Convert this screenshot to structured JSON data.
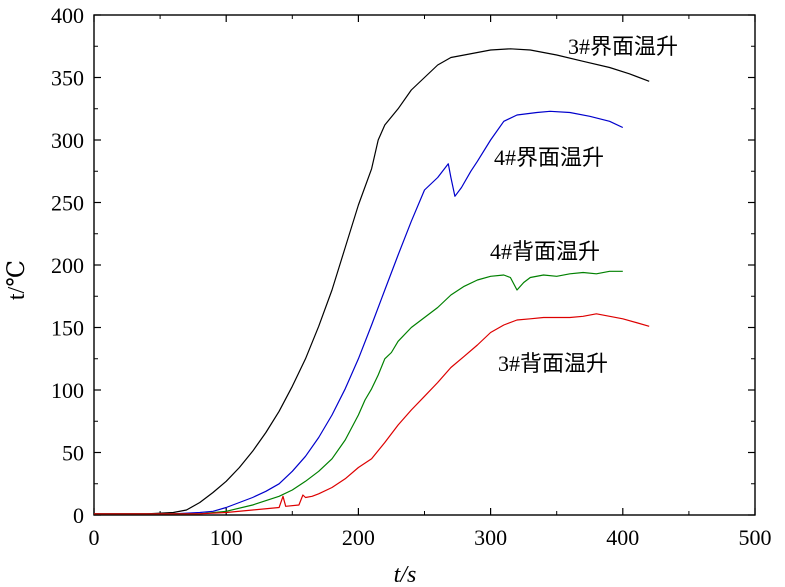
{
  "chart_data": {
    "type": "line",
    "xlabel": "t/s",
    "ylabel": "t/℃",
    "xlim": [
      0,
      500
    ],
    "ylim": [
      0,
      400
    ],
    "xticks": [
      0,
      100,
      200,
      300,
      400,
      500
    ],
    "yticks": [
      0,
      50,
      100,
      150,
      200,
      250,
      300,
      350,
      400
    ],
    "grid": false,
    "series": [
      {
        "name": "3#界面温升",
        "color": "#000000",
        "points": [
          [
            0,
            1
          ],
          [
            40,
            1
          ],
          [
            60,
            2
          ],
          [
            70,
            4
          ],
          [
            80,
            10
          ],
          [
            90,
            18
          ],
          [
            100,
            27
          ],
          [
            110,
            38
          ],
          [
            120,
            51
          ],
          [
            130,
            66
          ],
          [
            140,
            83
          ],
          [
            150,
            103
          ],
          [
            160,
            125
          ],
          [
            170,
            151
          ],
          [
            180,
            180
          ],
          [
            190,
            214
          ],
          [
            200,
            248
          ],
          [
            210,
            277
          ],
          [
            215,
            300
          ],
          [
            220,
            312
          ],
          [
            230,
            325
          ],
          [
            240,
            340
          ],
          [
            250,
            350
          ],
          [
            260,
            360
          ],
          [
            270,
            366
          ],
          [
            280,
            368
          ],
          [
            290,
            370
          ],
          [
            300,
            372
          ],
          [
            315,
            373
          ],
          [
            330,
            372
          ],
          [
            350,
            368
          ],
          [
            370,
            363
          ],
          [
            390,
            358
          ],
          [
            405,
            353
          ],
          [
            420,
            347
          ]
        ]
      },
      {
        "name": "4#界面温升",
        "color": "#0000cc",
        "points": [
          [
            0,
            1
          ],
          [
            60,
            1
          ],
          [
            80,
            2
          ],
          [
            90,
            3
          ],
          [
            100,
            6
          ],
          [
            110,
            10
          ],
          [
            120,
            14
          ],
          [
            130,
            19
          ],
          [
            140,
            25
          ],
          [
            150,
            35
          ],
          [
            160,
            47
          ],
          [
            170,
            62
          ],
          [
            180,
            80
          ],
          [
            190,
            101
          ],
          [
            200,
            125
          ],
          [
            210,
            152
          ],
          [
            220,
            180
          ],
          [
            230,
            208
          ],
          [
            240,
            235
          ],
          [
            250,
            260
          ],
          [
            260,
            270
          ],
          [
            268,
            281
          ],
          [
            270,
            270
          ],
          [
            273,
            255
          ],
          [
            278,
            262
          ],
          [
            285,
            275
          ],
          [
            290,
            283
          ],
          [
            300,
            300
          ],
          [
            310,
            315
          ],
          [
            320,
            320
          ],
          [
            335,
            322
          ],
          [
            345,
            323
          ],
          [
            360,
            322
          ],
          [
            375,
            319
          ],
          [
            390,
            315
          ],
          [
            400,
            310
          ]
        ]
      },
      {
        "name": "4#背面温升",
        "color": "#008000",
        "points": [
          [
            0,
            1
          ],
          [
            80,
            1
          ],
          [
            100,
            3
          ],
          [
            120,
            8
          ],
          [
            140,
            15
          ],
          [
            150,
            20
          ],
          [
            160,
            27
          ],
          [
            170,
            35
          ],
          [
            180,
            45
          ],
          [
            190,
            60
          ],
          [
            200,
            80
          ],
          [
            205,
            92
          ],
          [
            210,
            101
          ],
          [
            215,
            112
          ],
          [
            220,
            125
          ],
          [
            225,
            130
          ],
          [
            230,
            139
          ],
          [
            240,
            150
          ],
          [
            250,
            158
          ],
          [
            260,
            166
          ],
          [
            270,
            176
          ],
          [
            280,
            183
          ],
          [
            290,
            188
          ],
          [
            300,
            191
          ],
          [
            310,
            192
          ],
          [
            315,
            190
          ],
          [
            320,
            180
          ],
          [
            325,
            186
          ],
          [
            330,
            190
          ],
          [
            340,
            192
          ],
          [
            350,
            191
          ],
          [
            360,
            193
          ],
          [
            370,
            194
          ],
          [
            380,
            193
          ],
          [
            390,
            195
          ],
          [
            400,
            195
          ]
        ]
      },
      {
        "name": "3#背面温升",
        "color": "#dd0000",
        "points": [
          [
            0,
            1
          ],
          [
            80,
            1
          ],
          [
            100,
            2
          ],
          [
            120,
            4
          ],
          [
            140,
            6
          ],
          [
            143,
            15
          ],
          [
            145,
            7
          ],
          [
            155,
            8
          ],
          [
            158,
            16
          ],
          [
            160,
            14
          ],
          [
            165,
            15
          ],
          [
            170,
            17
          ],
          [
            180,
            22
          ],
          [
            190,
            29
          ],
          [
            200,
            38
          ],
          [
            210,
            45
          ],
          [
            220,
            58
          ],
          [
            230,
            72
          ],
          [
            240,
            84
          ],
          [
            250,
            95
          ],
          [
            260,
            106
          ],
          [
            270,
            118
          ],
          [
            280,
            127
          ],
          [
            290,
            136
          ],
          [
            300,
            146
          ],
          [
            310,
            152
          ],
          [
            320,
            156
          ],
          [
            330,
            157
          ],
          [
            340,
            158
          ],
          [
            350,
            158
          ],
          [
            360,
            158
          ],
          [
            370,
            159
          ],
          [
            380,
            161
          ],
          [
            390,
            159
          ],
          [
            400,
            157
          ],
          [
            410,
            154
          ],
          [
            420,
            151
          ]
        ]
      }
    ]
  }
}
